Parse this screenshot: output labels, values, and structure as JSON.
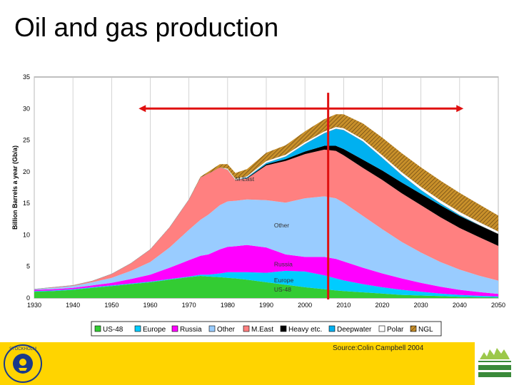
{
  "slide": {
    "title": "Oil and gas production",
    "source": "Source:Colin Campbell 2004"
  },
  "colors": {
    "US-48": "#33cc33",
    "Europe": "#00ccff",
    "Russia": "#ff00ff",
    "Other": "#99ccff",
    "M.East": "#ff8080",
    "Heavy etc.": "#000000",
    "Deepwater": "#00b0f0",
    "Polar": "#ffffff",
    "NGL": "#c8902a",
    "arrows": "#e01010",
    "footer": "#ffd400"
  },
  "chart_data": {
    "type": "area",
    "ylabel": "Billion Barrels a year (Gb/a)",
    "ylim": [
      0,
      35
    ],
    "xlim": [
      1930,
      2050
    ],
    "xticks": [
      "1930",
      "1940",
      "1950",
      "1960",
      "1970",
      "1980",
      "1990",
      "2000",
      "2010",
      "2020",
      "2030",
      "2040",
      "2050"
    ],
    "yticks": [
      "0",
      "5",
      "10",
      "15",
      "20",
      "25",
      "30",
      "35"
    ],
    "x": [
      1930,
      1935,
      1940,
      1945,
      1950,
      1955,
      1960,
      1965,
      1970,
      1973,
      1975,
      1978,
      1980,
      1982,
      1985,
      1990,
      1995,
      2000,
      2005,
      2008,
      2010,
      2015,
      2020,
      2025,
      2030,
      2035,
      2040,
      2045,
      2050
    ],
    "series": [
      {
        "name": "US-48",
        "values": [
          1.0,
          1.1,
          1.3,
          1.6,
          1.9,
          2.2,
          2.5,
          2.9,
          3.3,
          3.5,
          3.4,
          3.3,
          3.2,
          3.1,
          2.9,
          2.5,
          2.1,
          1.7,
          1.4,
          1.2,
          1.1,
          0.9,
          0.7,
          0.5,
          0.4,
          0.3,
          0.2,
          0.15,
          0.1
        ]
      },
      {
        "name": "Europe",
        "values": [
          0.1,
          0.1,
          0.1,
          0.1,
          0.1,
          0.1,
          0.1,
          0.1,
          0.1,
          0.2,
          0.3,
          0.6,
          0.9,
          1.0,
          1.2,
          1.5,
          2.2,
          2.5,
          2.2,
          1.9,
          1.7,
          1.3,
          1.0,
          0.8,
          0.6,
          0.4,
          0.3,
          0.2,
          0.15
        ]
      },
      {
        "name": "Russia",
        "values": [
          0.2,
          0.2,
          0.2,
          0.3,
          0.4,
          0.7,
          1.1,
          1.8,
          2.6,
          3.0,
          3.2,
          3.8,
          4.0,
          4.1,
          4.3,
          4.0,
          2.6,
          2.3,
          2.9,
          3.1,
          3.0,
          2.6,
          2.2,
          1.8,
          1.4,
          1.1,
          0.8,
          0.6,
          0.4
        ]
      },
      {
        "name": "Other",
        "values": [
          0.1,
          0.2,
          0.3,
          0.5,
          0.8,
          1.3,
          2.0,
          3.2,
          4.8,
          5.7,
          6.3,
          7.0,
          7.2,
          7.2,
          7.2,
          7.5,
          8.2,
          9.3,
          9.6,
          9.6,
          9.3,
          8.2,
          7.0,
          5.8,
          4.8,
          3.9,
          3.2,
          2.6,
          2.1
        ]
      },
      {
        "name": "M.East",
        "values": [
          0.0,
          0.1,
          0.1,
          0.2,
          0.6,
          1.2,
          2.0,
          3.2,
          4.8,
          6.7,
          6.5,
          6.0,
          5.0,
          3.3,
          3.3,
          5.5,
          6.6,
          7.0,
          7.4,
          7.5,
          7.5,
          7.6,
          7.8,
          7.7,
          7.5,
          7.1,
          6.6,
          6.1,
          5.5
        ]
      },
      {
        "name": "Heavy etc.",
        "values": [
          0,
          0,
          0,
          0,
          0,
          0,
          0,
          0,
          0,
          0,
          0,
          0,
          0,
          0,
          0.1,
          0.2,
          0.3,
          0.4,
          0.6,
          0.8,
          1.0,
          1.3,
          1.5,
          1.7,
          1.8,
          1.9,
          1.9,
          1.9,
          1.9
        ]
      },
      {
        "name": "Deepwater",
        "values": [
          0,
          0,
          0,
          0,
          0,
          0,
          0,
          0,
          0,
          0,
          0,
          0,
          0,
          0,
          0.1,
          0.2,
          0.4,
          1.2,
          2.0,
          2.7,
          3.0,
          2.9,
          2.0,
          1.2,
          0.6,
          0.3,
          0.15,
          0.05,
          0.0
        ]
      },
      {
        "name": "Polar",
        "values": [
          0,
          0,
          0,
          0,
          0,
          0,
          0,
          0,
          0,
          0,
          0,
          0,
          0.2,
          0.2,
          0.2,
          0.3,
          0.3,
          0.3,
          0.3,
          0.3,
          0.3,
          0.35,
          0.4,
          0.45,
          0.5,
          0.5,
          0.5,
          0.45,
          0.4
        ]
      },
      {
        "name": "NGL",
        "values": [
          0,
          0,
          0,
          0,
          0,
          0,
          0,
          0,
          0,
          0.1,
          0.3,
          0.5,
          0.7,
          0.9,
          1.1,
          1.3,
          1.5,
          1.7,
          1.9,
          2.0,
          2.2,
          2.5,
          2.8,
          3.0,
          3.1,
          3.1,
          3.0,
          2.8,
          2.5
        ]
      }
    ],
    "area_labels": [
      "M.East",
      "Other",
      "Russia",
      "Europe",
      "US-48"
    ],
    "legend": [
      "US-48",
      "Europe",
      "Russia",
      "Other",
      "M.East",
      "Heavy etc.",
      "Deepwater",
      "Polar",
      "NGL"
    ],
    "grid": true,
    "legend_placement": "bottom",
    "peak_marker_year": 2006,
    "arrow_span": [
      1957,
      2041
    ],
    "arrow_value": 30
  }
}
